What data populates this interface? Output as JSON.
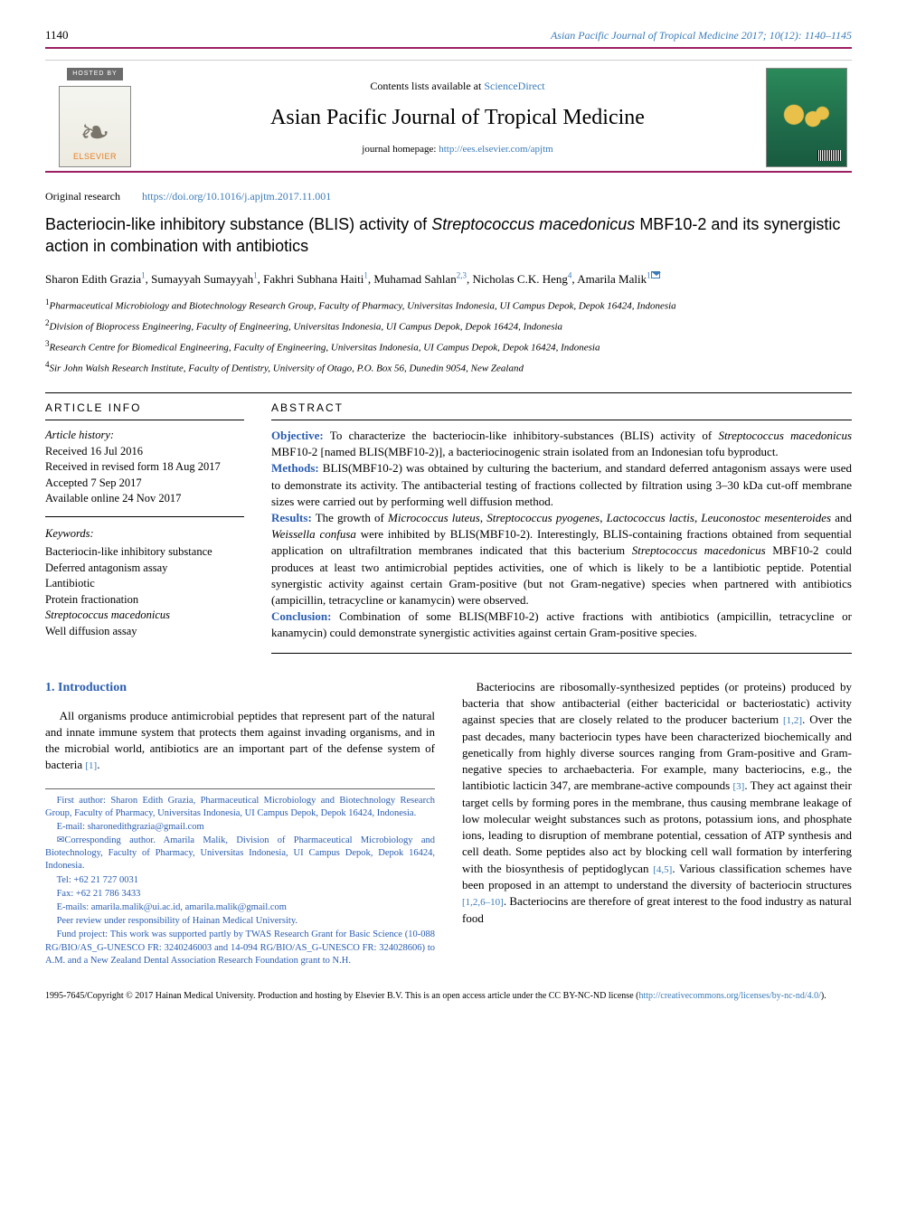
{
  "page_number": "1140",
  "running_header": "Asian Pacific Journal of Tropical Medicine 2017; 10(12): 1140–1145",
  "hosted_by": "HOSTED BY",
  "elsevier": "ELSEVIER",
  "contents_prefix": "Contents lists available at ",
  "contents_link": "ScienceDirect",
  "journal_name": "Asian Pacific Journal of Tropical Medicine",
  "homepage_prefix": "journal homepage: ",
  "homepage_url": "http://ees.elsevier.com/apjtm",
  "original_research": "Original research",
  "doi": "https://doi.org/10.1016/j.apjtm.2017.11.001",
  "title_pre": "Bacteriocin-like inhibitory substance (BLIS) activity of ",
  "title_species": "Streptococcus macedonicus",
  "title_post": " MBF10-2 and its synergistic action in combination with antibiotics",
  "authors_html": "Sharon Edith Grazia<sup>1</sup>, Sumayyah Sumayyah<sup>1</sup>, Fakhri Subhana Haiti<sup>1</sup>, Muhamad Sahlan<sup>2,3</sup>, Nicholas C.K. Heng<sup>4</sup>, Amarila Malik<sup>1</sup>",
  "affiliations": [
    {
      "sup": "1",
      "text": "Pharmaceutical Microbiology and Biotechnology Research Group, Faculty of Pharmacy, Universitas Indonesia, UI Campus Depok, Depok 16424, Indonesia"
    },
    {
      "sup": "2",
      "text": "Division of Bioprocess Engineering, Faculty of Engineering, Universitas Indonesia, UI Campus Depok, Depok 16424, Indonesia"
    },
    {
      "sup": "3",
      "text": "Research Centre for Biomedical Engineering, Faculty of Engineering, Universitas Indonesia, UI Campus Depok, Depok 16424, Indonesia"
    },
    {
      "sup": "4",
      "text": "Sir John Walsh Research Institute, Faculty of Dentistry, University of Otago, P.O. Box 56, Dunedin 9054, New Zealand"
    }
  ],
  "article_info_head": "ARTICLE INFO",
  "abstract_head": "ABSTRACT",
  "history_label": "Article history:",
  "history": [
    "Received 16 Jul 2016",
    "Received in revised form 18 Aug 2017",
    "Accepted 7 Sep 2017",
    "Available online 24 Nov 2017"
  ],
  "keywords_label": "Keywords:",
  "keywords": [
    "Bacteriocin-like inhibitory substance",
    "Deferred antagonism assay",
    "Lantibiotic",
    "Protein fractionation",
    "Streptococcus macedonicus",
    "Well diffusion assay"
  ],
  "abstract": {
    "objective_label": "Objective:",
    "objective": " To characterize the bacteriocin-like inhibitory-substances (BLIS) activity of <i>Streptococcus macedonicus</i> MBF10-2 [named BLIS(MBF10-2)], a bacteriocinogenic strain isolated from an Indonesian tofu byproduct.",
    "methods_label": "Methods:",
    "methods": " BLIS(MBF10-2) was obtained by culturing the bacterium, and standard deferred antagonism assays were used to demonstrate its activity. The antibacterial testing of fractions collected by filtration using 3–30 kDa cut-off membrane sizes were carried out by performing well diffusion method.",
    "results_label": "Results:",
    "results": " The growth of <i>Micrococcus luteus</i>, <i>Streptococcus pyogenes</i>, <i>Lactococcus lactis</i>, <i>Leuconostoc mesenteroides</i> and <i>Weissella confusa</i> were inhibited by BLIS(MBF10-2). Interestingly, BLIS-containing fractions obtained from sequential application on ultrafiltration membranes indicated that this bacterium <i>Streptococcus macedonicus</i> MBF10-2 could produces at least two antimicrobial peptides activities, one of which is likely to be a lantibiotic peptide. Potential synergistic activity against certain Gram-positive (but not Gram-negative) species when partnered with antibiotics (ampicillin, tetracycline or kanamycin) were observed.",
    "conclusion_label": "Conclusion:",
    "conclusion": " Combination of some BLIS(MBF10-2) active fractions with antibiotics (ampicillin, tetracycline or kanamycin) could demonstrate synergistic activities against certain Gram-positive species."
  },
  "intro_head": "1. Introduction",
  "intro_left": "All organisms produce antimicrobial peptides that represent part of the natural and innate immune system that protects them against invading organisms, and in the microbial world, antibiotics are an important part of the defense system of bacteria <span class=\"ref-link\">[1]</span>.",
  "intro_right": "Bacteriocins are ribosomally-synthesized peptides (or proteins) produced by bacteria that show antibacterial (either bactericidal or bacteriostatic) activity against species that are closely related to the producer bacterium <span class=\"ref-link\">[1,2]</span>. Over the past decades, many bacteriocin types have been characterized biochemically and genetically from highly diverse sources ranging from Gram-positive and Gram-negative species to archaebacteria. For example, many bacteriocins, e.g., the lantibiotic lacticin 347, are membrane-active compounds <span class=\"ref-link\">[3]</span>. They act against their target cells by forming pores in the membrane, thus causing membrane leakage of low molecular weight substances such as protons, potassium ions, and phosphate ions, leading to disruption of membrane potential, cessation of ATP synthesis and cell death. Some peptides also act by blocking cell wall formation by interfering with the biosynthesis of peptidoglycan <span class=\"ref-link\">[4,5]</span>. Various classification schemes have been proposed in an attempt to understand the diversity of bacteriocin structures <span class=\"ref-link\">[1,2,6–10]</span>. Bacteriocins are therefore of great interest to the food industry as natural food",
  "footnotes": [
    "First author: Sharon Edith Grazia, Pharmaceutical Microbiology and Biotechnology Research Group, Faculty of Pharmacy, Universitas Indonesia, UI Campus Depok, Depok 16424, Indonesia.",
    "E-mail: sharonedithgrazia@gmail.com",
    "✉Corresponding author. Amarila Malik, Division of Pharmaceutical Microbiology and Biotechnology, Faculty of Pharmacy, Universitas Indonesia, UI Campus Depok, Depok 16424, Indonesia.",
    "Tel: +62 21 727 0031",
    "Fax: +62 21 786 3433",
    "E-mails: amarila.malik@ui.ac.id, amarila.malik@gmail.com",
    "Peer review under responsibility of Hainan Medical University.",
    "Fund project: This work was supported partly by TWAS Research Grant for Basic Science (10-088 RG/BIO/AS_G-UNESCO FR: 3240246003 and 14-094 RG/BIO/AS_G-UNESCO FR: 324028606) to A.M. and a New Zealand Dental Association Research Foundation grant to N.H."
  ],
  "copyright_pre": "1995-7645/Copyright © 2017 Hainan Medical University. Production and hosting by Elsevier B.V. This is an open access article under the CC BY-NC-ND license (",
  "copyright_url": "http://creativecommons.org/licenses/by-nc-nd/4.0/",
  "copyright_post": ").",
  "colors": {
    "accent": "#9c1f63",
    "link": "#3a7bb8",
    "abs_label": "#2a5db0"
  }
}
